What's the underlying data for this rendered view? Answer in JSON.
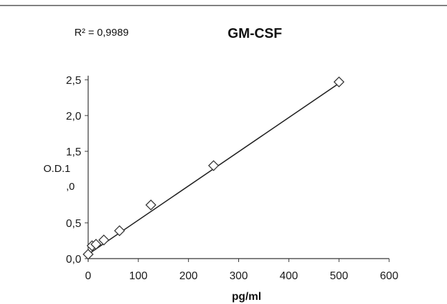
{
  "chart_data": {
    "type": "scatter",
    "title": "GM-CSF",
    "annotation": "R² = 0,9989",
    "xlabel": "pg/ml",
    "ylabel_parts": [
      "O.D.1",
      ",0"
    ],
    "xlim": [
      0,
      600
    ],
    "ylim": [
      0,
      2.5
    ],
    "x_ticks": [
      {
        "value": 0,
        "label": "0"
      },
      {
        "value": 100,
        "label": "100"
      },
      {
        "value": 200,
        "label": "200"
      },
      {
        "value": 300,
        "label": "300"
      },
      {
        "value": 400,
        "label": "400"
      },
      {
        "value": 500,
        "label": "500"
      },
      {
        "value": 600,
        "label": "600"
      }
    ],
    "y_ticks": [
      {
        "value": 0,
        "label": "0,0"
      },
      {
        "value": 0.5,
        "label": "0,5"
      },
      {
        "value": 1.5,
        "label": "1,5"
      },
      {
        "value": 2.0,
        "label": "2,0"
      },
      {
        "value": 2.5,
        "label": "2,5"
      }
    ],
    "series": [
      {
        "x": [
          0,
          7.8,
          15.6,
          31.25,
          62.5,
          125,
          250,
          500
        ],
        "y": [
          0.06,
          0.18,
          0.2,
          0.26,
          0.39,
          0.75,
          1.3,
          2.47
        ]
      }
    ],
    "trendline": {
      "x": [
        0,
        500
      ],
      "y": [
        0.06,
        2.45
      ]
    },
    "grid": false,
    "colors": {
      "axis": "#333333",
      "marker": "#333333",
      "line": "#222222",
      "top_rule": "#555555"
    }
  }
}
